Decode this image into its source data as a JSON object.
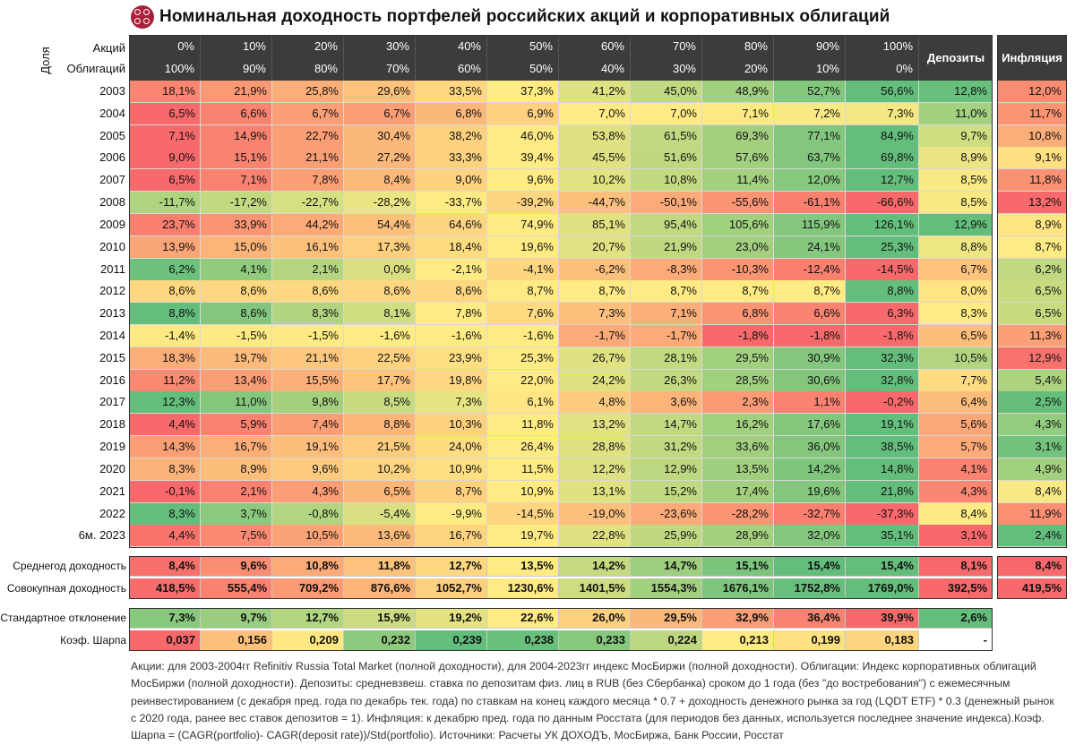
{
  "title": "Номинальная доходность портфелей российских акций и корпоративных облигаций",
  "logo_icon": "dokhod-logo-icon",
  "share_label": "Доля",
  "header": {
    "stocks_label": "Акций",
    "bonds_label": "Облигаций",
    "stocks_pct": [
      "0%",
      "10%",
      "20%",
      "30%",
      "40%",
      "50%",
      "60%",
      "70%",
      "80%",
      "90%",
      "100%"
    ],
    "bonds_pct": [
      "100%",
      "90%",
      "80%",
      "70%",
      "60%",
      "50%",
      "40%",
      "30%",
      "20%",
      "10%",
      "0%"
    ],
    "deposits": "Депозиты",
    "inflation": "Инфляция"
  },
  "rows": [
    {
      "year": "2003",
      "v": [
        "18,1%",
        "21,9%",
        "25,8%",
        "29,6%",
        "33,5%",
        "37,3%",
        "41,2%",
        "45,0%",
        "48,9%",
        "52,7%",
        "56,6%"
      ],
      "dep": "12,8%",
      "inf": "12,0%"
    },
    {
      "year": "2004",
      "v": [
        "6,5%",
        "6,6%",
        "6,7%",
        "6,7%",
        "6,8%",
        "6,9%",
        "7,0%",
        "7,0%",
        "7,1%",
        "7,2%",
        "7,3%"
      ],
      "dep": "11,0%",
      "inf": "11,7%"
    },
    {
      "year": "2005",
      "v": [
        "7,1%",
        "14,9%",
        "22,7%",
        "30,4%",
        "38,2%",
        "46,0%",
        "53,8%",
        "61,5%",
        "69,3%",
        "77,1%",
        "84,9%"
      ],
      "dep": "9,7%",
      "inf": "10,8%"
    },
    {
      "year": "2006",
      "v": [
        "9,0%",
        "15,1%",
        "21,1%",
        "27,2%",
        "33,3%",
        "39,4%",
        "45,5%",
        "51,6%",
        "57,6%",
        "63,7%",
        "69,8%"
      ],
      "dep": "8,9%",
      "inf": "9,1%"
    },
    {
      "year": "2007",
      "v": [
        "6,5%",
        "7,1%",
        "7,8%",
        "8,4%",
        "9,0%",
        "9,6%",
        "10,2%",
        "10,8%",
        "11,4%",
        "12,0%",
        "12,7%"
      ],
      "dep": "8,5%",
      "inf": "11,8%"
    },
    {
      "year": "2008",
      "v": [
        "-11,7%",
        "-17,2%",
        "-22,7%",
        "-28,2%",
        "-33,7%",
        "-39,2%",
        "-44,7%",
        "-50,1%",
        "-55,6%",
        "-61,1%",
        "-66,6%"
      ],
      "dep": "8,5%",
      "inf": "13,2%"
    },
    {
      "year": "2009",
      "v": [
        "23,7%",
        "33,9%",
        "44,2%",
        "54,4%",
        "64,6%",
        "74,9%",
        "85,1%",
        "95,4%",
        "105,6%",
        "115,9%",
        "126,1%"
      ],
      "dep": "12,9%",
      "inf": "8,9%"
    },
    {
      "year": "2010",
      "v": [
        "13,9%",
        "15,0%",
        "16,1%",
        "17,3%",
        "18,4%",
        "19,6%",
        "20,7%",
        "21,9%",
        "23,0%",
        "24,1%",
        "25,3%"
      ],
      "dep": "8,8%",
      "inf": "8,7%"
    },
    {
      "year": "2011",
      "v": [
        "6,2%",
        "4,1%",
        "2,1%",
        "0,0%",
        "-2,1%",
        "-4,1%",
        "-6,2%",
        "-8,3%",
        "-10,3%",
        "-12,4%",
        "-14,5%"
      ],
      "dep": "6,7%",
      "inf": "6,2%"
    },
    {
      "year": "2012",
      "v": [
        "8,6%",
        "8,6%",
        "8,6%",
        "8,6%",
        "8,6%",
        "8,7%",
        "8,7%",
        "8,7%",
        "8,7%",
        "8,7%",
        "8,8%"
      ],
      "dep": "8,0%",
      "inf": "6,5%"
    },
    {
      "year": "2013",
      "v": [
        "8,8%",
        "8,6%",
        "8,3%",
        "8,1%",
        "7,8%",
        "7,6%",
        "7,3%",
        "7,1%",
        "6,8%",
        "6,6%",
        "6,3%"
      ],
      "dep": "8,3%",
      "inf": "6,5%"
    },
    {
      "year": "2014",
      "v": [
        "-1,4%",
        "-1,5%",
        "-1,5%",
        "-1,6%",
        "-1,6%",
        "-1,6%",
        "-1,7%",
        "-1,7%",
        "-1,8%",
        "-1,8%",
        "-1,8%"
      ],
      "dep": "6,5%",
      "inf": "11,3%"
    },
    {
      "year": "2015",
      "v": [
        "18,3%",
        "19,7%",
        "21,1%",
        "22,5%",
        "23,9%",
        "25,3%",
        "26,7%",
        "28,1%",
        "29,5%",
        "30,9%",
        "32,3%"
      ],
      "dep": "10,5%",
      "inf": "12,9%"
    },
    {
      "year": "2016",
      "v": [
        "11,2%",
        "13,4%",
        "15,5%",
        "17,7%",
        "19,8%",
        "22,0%",
        "24,2%",
        "26,3%",
        "28,5%",
        "30,6%",
        "32,8%"
      ],
      "dep": "7,7%",
      "inf": "5,4%"
    },
    {
      "year": "2017",
      "v": [
        "12,3%",
        "11,0%",
        "9,8%",
        "8,5%",
        "7,3%",
        "6,1%",
        "4,8%",
        "3,6%",
        "2,3%",
        "1,1%",
        "-0,2%"
      ],
      "dep": "6,4%",
      "inf": "2,5%"
    },
    {
      "year": "2018",
      "v": [
        "4,4%",
        "5,9%",
        "7,4%",
        "8,8%",
        "10,3%",
        "11,8%",
        "13,2%",
        "14,7%",
        "16,2%",
        "17,6%",
        "19,1%"
      ],
      "dep": "5,6%",
      "inf": "4,3%"
    },
    {
      "year": "2019",
      "v": [
        "14,3%",
        "16,7%",
        "19,1%",
        "21,5%",
        "24,0%",
        "26,4%",
        "28,8%",
        "31,2%",
        "33,6%",
        "36,0%",
        "38,5%"
      ],
      "dep": "5,7%",
      "inf": "3,1%"
    },
    {
      "year": "2020",
      "v": [
        "8,3%",
        "8,9%",
        "9,6%",
        "10,2%",
        "10,9%",
        "11,5%",
        "12,2%",
        "12,9%",
        "13,5%",
        "14,2%",
        "14,8%"
      ],
      "dep": "4,1%",
      "inf": "4,9%"
    },
    {
      "year": "2021",
      "v": [
        "-0,1%",
        "2,1%",
        "4,3%",
        "6,5%",
        "8,7%",
        "10,9%",
        "13,1%",
        "15,2%",
        "17,4%",
        "19,6%",
        "21,8%"
      ],
      "dep": "4,3%",
      "inf": "8,4%"
    },
    {
      "year": "2022",
      "v": [
        "8,3%",
        "3,7%",
        "-0,8%",
        "-5,4%",
        "-9,9%",
        "-14,5%",
        "-19,0%",
        "-23,6%",
        "-28,2%",
        "-32,7%",
        "-37,3%"
      ],
      "dep": "8,4%",
      "inf": "11,9%"
    },
    {
      "year": "6м. 2023",
      "v": [
        "4,4%",
        "7,5%",
        "10,5%",
        "13,6%",
        "16,7%",
        "19,7%",
        "22,8%",
        "25,9%",
        "28,9%",
        "32,0%",
        "35,1%"
      ],
      "dep": "3,1%",
      "inf": "2,4%"
    }
  ],
  "summary": [
    {
      "label": "Среднегод доходность",
      "v": [
        "8,4%",
        "9,6%",
        "10,8%",
        "11,8%",
        "12,7%",
        "13,5%",
        "14,2%",
        "14,7%",
        "15,1%",
        "15,4%",
        "15,4%"
      ],
      "dep": "8,1%",
      "inf": "8,4%"
    },
    {
      "label": "Совокупная доходность",
      "v": [
        "418,5%",
        "555,4%",
        "709,2%",
        "876,6%",
        "1052,7%",
        "1230,6%",
        "1401,5%",
        "1554,3%",
        "1676,1%",
        "1752,8%",
        "1769,0%"
      ],
      "dep": "392,5%",
      "inf": "419,5%"
    }
  ],
  "risk": [
    {
      "label": "Стандартное отклонение",
      "v": [
        "7,3%",
        "9,7%",
        "12,7%",
        "15,9%",
        "19,2%",
        "22,6%",
        "26,0%",
        "29,5%",
        "32,9%",
        "36,4%",
        "39,9%"
      ],
      "dep": "2,6%"
    },
    {
      "label": "Коэф. Шарпа",
      "v": [
        "0,037",
        "0,156",
        "0,209",
        "0,232",
        "0,239",
        "0,238",
        "0,233",
        "0,224",
        "0,213",
        "0,199",
        "0,183"
      ],
      "dep": "-"
    }
  ],
  "notes": "Акции: для 2003-2004гг Refinitiv Russia Total Market (полной доходности), для 2004-2023гг индекс МосБиржи (полной доходности). Облигации: Индекс корпоративных облигаций МосБиржи (полной доходности). Депозиты: средневзвеш. ставка по  депозитам физ. лиц в RUB (без Сбербанка) сроком до 1 года (без \"до востребования\") с ежемесячным реинвестированием (с декабря пред. года по декабрь тек. года) по ставкам на конец каждого месяца * 0.7 + доходность денежного рынка за год (LQDT ETF) * 0.3 (денежный рынок с 2020 года, ранее вес ставок депозитов = 1). Инфляция: к декабрю пред. года по данным Росстата (для периодов без данных, используется последнее значение индекса).Коэф. Шарпа = (CAGR(portfolio)- CAGR(deposit rate))/Std(portfolio). Источники: Расчеты УК ДОХОДЪ, МосБиржа, Банк России, Росстат",
  "colors": {
    "header_bg": "#3c3c3c",
    "red": "#f8696b",
    "yellow": "#ffeb84",
    "green": "#63be7b",
    "white": "#ffffff"
  }
}
